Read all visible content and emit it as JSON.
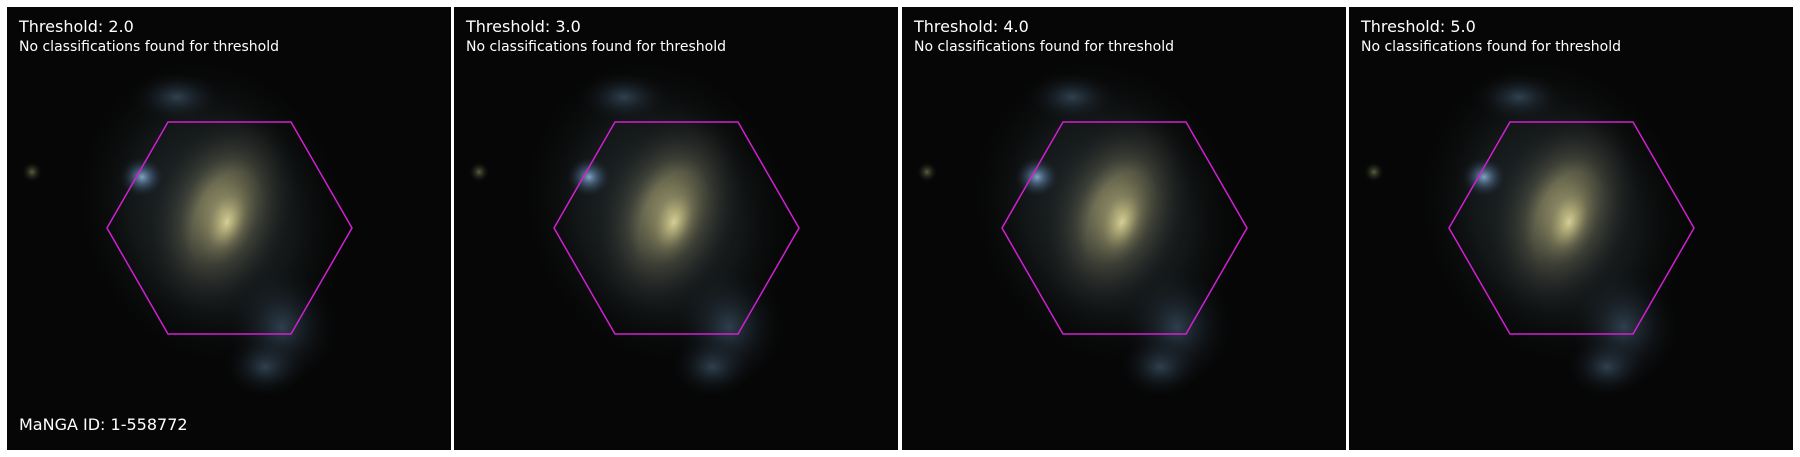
{
  "panels": [
    {
      "title": "Threshold: 2.0",
      "subtitle": "No classifications found for threshold",
      "id_label": "MaNGA ID: 1-558772"
    },
    {
      "title": "Threshold: 3.0",
      "subtitle": "No classifications found for threshold"
    },
    {
      "title": "Threshold: 4.0",
      "subtitle": "No classifications found for threshold"
    },
    {
      "title": "Threshold: 5.0",
      "subtitle": "No classifications found for threshold"
    }
  ],
  "colors": {
    "hexagon_stroke": "#d21fd2",
    "text": "#ffffff",
    "background": "#050505"
  }
}
